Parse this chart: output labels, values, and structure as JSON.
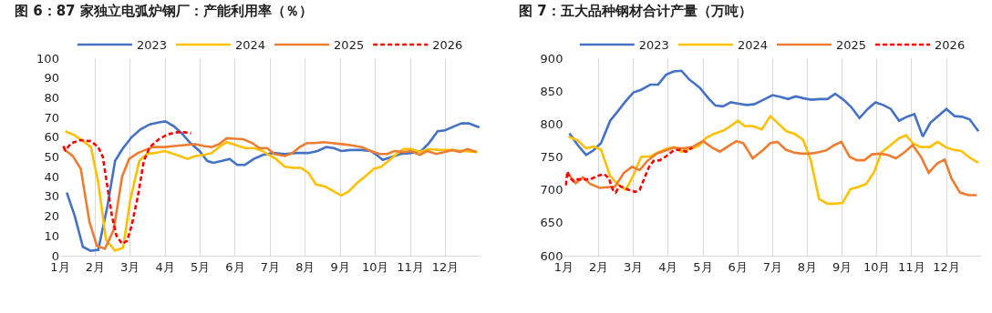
{
  "chart_data": [
    {
      "type": "line",
      "title": "图 6：87 家独立电弧炉钢厂：产能利用率（％）",
      "legend": "top",
      "grid": "x",
      "marker": "none",
      "xlim": [
        1,
        13
      ],
      "xticks": [
        {
          "value": 1,
          "label": "1月"
        },
        {
          "value": 2,
          "label": "2月"
        },
        {
          "value": 3,
          "label": "3月"
        },
        {
          "value": 4,
          "label": "4月"
        },
        {
          "value": 5,
          "label": "5月"
        },
        {
          "value": 6,
          "label": "6月"
        },
        {
          "value": 7,
          "label": "7月"
        },
        {
          "value": 8,
          "label": "8月"
        },
        {
          "value": 9,
          "label": "9月"
        },
        {
          "value": 10,
          "label": "10月"
        },
        {
          "value": 11,
          "label": "11月"
        },
        {
          "value": 12,
          "label": "12月"
        }
      ],
      "ylim": [
        0,
        100
      ],
      "yticks": [
        0,
        10,
        20,
        30,
        40,
        50,
        60,
        70,
        80,
        90,
        100
      ],
      "series": [
        {
          "name": "2023",
          "color": "#4472c4",
          "line_style": "solid",
          "x": [
            1.19,
            1.42,
            1.65,
            1.87,
            2.09,
            2.35,
            2.57,
            2.78,
            3.04,
            3.3,
            3.56,
            3.82,
            4.01,
            4.25,
            4.47,
            4.72,
            4.98,
            5.2,
            5.37,
            5.63,
            5.84,
            6.06,
            6.28,
            6.53,
            6.79,
            7.08,
            7.42,
            7.75,
            8.09,
            8.35,
            8.6,
            8.81,
            9.03,
            9.28,
            9.62,
            9.87,
            10.04,
            10.21,
            10.47,
            10.72,
            11.02,
            11.31,
            11.53,
            11.78,
            11.99,
            12.25,
            12.46,
            12.67,
            12.97
          ],
          "values": [
            32,
            20,
            4.5,
            2.5,
            3,
            25,
            48,
            54,
            60,
            64,
            66.5,
            67.5,
            68,
            65.5,
            62,
            57,
            53,
            48,
            47,
            48,
            49,
            46,
            46,
            49,
            51,
            52,
            51.5,
            52,
            52,
            53,
            55,
            54.5,
            53,
            53.5,
            53.5,
            53,
            51,
            48.5,
            50,
            51.5,
            52,
            53,
            57,
            63,
            63.5,
            65.5,
            67,
            67,
            65
          ]
        },
        {
          "name": "2024",
          "color": "#ffc000",
          "line_style": "solid",
          "x": [
            1.15,
            1.41,
            1.66,
            1.88,
            2.09,
            2.31,
            2.57,
            2.8,
            3.0,
            3.26,
            3.47,
            3.69,
            3.99,
            4.25,
            4.64,
            4.85,
            5.11,
            5.33,
            5.54,
            5.76,
            6.02,
            6.28,
            6.53,
            6.79,
            6.91,
            7.16,
            7.42,
            7.67,
            7.88,
            8.09,
            8.31,
            8.56,
            8.77,
            9.03,
            9.24,
            9.49,
            9.7,
            9.96,
            10.17,
            10.38,
            10.64,
            10.81,
            11.02,
            11.27,
            11.53,
            11.82,
            12.16,
            12.5,
            12.92
          ],
          "values": [
            63,
            61,
            58,
            55,
            37,
            8,
            2.5,
            4,
            28,
            48,
            51.5,
            52,
            53,
            51.5,
            49,
            50.5,
            51,
            52,
            55,
            57.5,
            56,
            54.5,
            54.5,
            53,
            51.5,
            49,
            45,
            44.5,
            44.5,
            42,
            36,
            35,
            33,
            30.5,
            32.5,
            37,
            40,
            44,
            45,
            48,
            52,
            54,
            54,
            52.5,
            54,
            53.5,
            53.5,
            53,
            52.5
          ]
        },
        {
          "name": "2025",
          "color": "#ed7d31",
          "line_style": "solid",
          "x": [
            1.1,
            1.36,
            1.59,
            1.84,
            2.05,
            2.28,
            2.53,
            2.77,
            2.97,
            3.22,
            3.43,
            3.65,
            3.99,
            4.25,
            4.55,
            4.85,
            5.11,
            5.33,
            5.54,
            5.76,
            6.23,
            6.49,
            6.69,
            6.91,
            7.12,
            7.42,
            7.63,
            7.84,
            8.05,
            8.26,
            8.52,
            8.77,
            9.03,
            9.28,
            9.62,
            9.87,
            10.13,
            10.34,
            10.55,
            10.81,
            11.02,
            11.27,
            11.48,
            11.74,
            11.99,
            12.2,
            12.42,
            12.63,
            12.88
          ],
          "values": [
            54,
            50.5,
            44,
            17,
            5,
            3.5,
            13,
            40,
            49,
            52,
            53.5,
            55,
            55,
            55.5,
            56,
            56.5,
            55.5,
            55,
            56.5,
            59.5,
            59,
            57,
            54.5,
            54.5,
            51.5,
            50.5,
            52,
            55,
            57,
            57,
            57.5,
            57,
            56.5,
            56,
            55,
            53,
            51.5,
            51.5,
            53,
            52.5,
            53,
            51,
            53,
            51.5,
            52.5,
            53.5,
            52.5,
            54,
            52.5
          ]
        },
        {
          "name": "2026",
          "color": "#ff0000",
          "line_style": "dashed",
          "x": [
            1.09,
            1.15,
            1.32,
            1.58,
            1.88,
            2.09,
            2.22,
            2.35,
            2.48,
            2.61,
            2.77,
            2.91,
            3.04,
            3.22,
            3.39,
            3.56,
            3.82,
            4.08,
            4.34,
            4.55,
            4.74
          ],
          "values": [
            55.5,
            53.5,
            57,
            58.5,
            58,
            55,
            50,
            35,
            20,
            10,
            6,
            7.5,
            15,
            30,
            48,
            55,
            59,
            61.5,
            62.5,
            62.5,
            62
          ]
        }
      ]
    },
    {
      "type": "line",
      "title": "图 7：五大品种钢材合计产量（万吨）",
      "legend": "top",
      "grid": "x",
      "marker": "none",
      "xlim": [
        1,
        13
      ],
      "xticks": [
        {
          "value": 1,
          "label": "1月"
        },
        {
          "value": 2,
          "label": "2月"
        },
        {
          "value": 3,
          "label": "3月"
        },
        {
          "value": 4,
          "label": "4月"
        },
        {
          "value": 5,
          "label": "5月"
        },
        {
          "value": 6,
          "label": "6月"
        },
        {
          "value": 7,
          "label": "7月"
        },
        {
          "value": 8,
          "label": "8月"
        },
        {
          "value": 9,
          "label": "9月"
        },
        {
          "value": 10,
          "label": "10月"
        },
        {
          "value": 11,
          "label": "11月"
        },
        {
          "value": 12,
          "label": "12月"
        }
      ],
      "ylim": [
        600,
        900
      ],
      "yticks": [
        600,
        650,
        700,
        750,
        800,
        850,
        900
      ],
      "series": [
        {
          "name": "2023",
          "color": "#4472c4",
          "line_style": "solid",
          "x": [
            1.16,
            1.4,
            1.64,
            1.85,
            2.07,
            2.33,
            2.56,
            2.78,
            3.0,
            3.22,
            3.49,
            3.71,
            3.94,
            4.16,
            4.38,
            4.6,
            4.91,
            5.14,
            5.36,
            5.58,
            5.8,
            6.03,
            6.25,
            6.47,
            6.74,
            7.0,
            7.25,
            7.45,
            7.67,
            7.9,
            8.12,
            8.34,
            8.58,
            8.8,
            9.04,
            9.26,
            9.5,
            9.74,
            9.96,
            10.18,
            10.4,
            10.64,
            10.86,
            11.08,
            11.32,
            11.54,
            11.78,
            12.0,
            12.24,
            12.46,
            12.67,
            12.92
          ],
          "values": [
            786,
            768,
            753,
            760,
            771,
            805,
            820,
            835,
            848,
            852,
            860,
            860,
            875,
            880,
            881,
            868,
            855,
            840,
            828,
            827,
            833,
            831,
            829,
            830,
            837,
            844,
            841,
            838,
            842,
            839,
            837,
            838,
            838,
            846,
            837,
            826,
            809,
            823,
            833,
            829,
            823,
            805,
            811,
            815,
            781,
            802,
            813,
            823,
            812,
            811,
            807,
            789
          ]
        },
        {
          "name": "2024",
          "color": "#ffc000",
          "line_style": "solid",
          "x": [
            1.13,
            1.4,
            1.64,
            1.85,
            2.07,
            2.33,
            2.56,
            2.78,
            3.0,
            3.22,
            3.49,
            3.71,
            3.94,
            4.16,
            4.38,
            4.6,
            4.87,
            5.09,
            5.31,
            5.58,
            5.8,
            6.0,
            6.2,
            6.43,
            6.69,
            6.94,
            7.18,
            7.4,
            7.64,
            7.88,
            8.1,
            8.34,
            8.58,
            8.8,
            9.01,
            9.24,
            9.45,
            9.69,
            9.92,
            10.13,
            10.35,
            10.62,
            10.84,
            11.05,
            11.27,
            11.52,
            11.75,
            11.97,
            12.19,
            12.43,
            12.67,
            12.92
          ],
          "values": [
            781,
            775,
            763,
            766,
            761,
            721,
            708,
            700,
            722,
            750,
            751,
            757,
            762,
            765,
            758,
            762,
            766,
            779,
            785,
            790,
            797,
            805,
            797,
            797,
            792,
            812,
            800,
            789,
            785,
            776,
            745,
            686,
            679,
            679,
            680,
            701,
            704,
            709,
            727,
            757,
            766,
            778,
            783,
            770,
            765,
            765,
            773,
            765,
            761,
            759,
            749,
            741
          ]
        },
        {
          "name": "2025",
          "color": "#ed7d31",
          "line_style": "solid",
          "x": [
            1.13,
            1.34,
            1.55,
            1.76,
            2.02,
            2.25,
            2.47,
            2.73,
            2.96,
            3.18,
            3.4,
            3.67,
            3.94,
            4.16,
            4.43,
            4.69,
            5.0,
            5.27,
            5.49,
            5.72,
            5.96,
            6.16,
            6.43,
            6.74,
            6.94,
            7.14,
            7.38,
            7.6,
            7.84,
            8.08,
            8.3,
            8.54,
            8.78,
            8.98,
            9.22,
            9.43,
            9.64,
            9.86,
            10.09,
            10.31,
            10.55,
            10.79,
            11.03,
            11.27,
            11.49,
            11.73,
            11.95,
            12.15,
            12.39,
            12.63,
            12.87
          ],
          "values": [
            724,
            710,
            719,
            709,
            703,
            704,
            705,
            726,
            735,
            730,
            744,
            755,
            760,
            764,
            763,
            765,
            774,
            764,
            758,
            766,
            774,
            771,
            748,
            761,
            771,
            773,
            761,
            757,
            755,
            755,
            757,
            760,
            768,
            773,
            750,
            745,
            745,
            754,
            755,
            753,
            748,
            757,
            768,
            750,
            726,
            740,
            746,
            717,
            696,
            692,
            692
          ]
        },
        {
          "name": "2026",
          "color": "#ff0000",
          "line_style": "dashed",
          "x": [
            1.06,
            1.1,
            1.18,
            1.28,
            1.4,
            1.58,
            1.76,
            1.96,
            2.16,
            2.29,
            2.41,
            2.49,
            2.6,
            2.73,
            2.87,
            3.05,
            3.18,
            3.31,
            3.45,
            3.58,
            3.76,
            3.94,
            4.16,
            4.34,
            4.51,
            4.69
          ],
          "values": [
            707,
            728,
            718,
            713,
            716,
            716,
            716,
            721,
            724,
            718,
            700,
            696,
            706,
            703,
            700,
            697,
            700,
            717,
            735,
            744,
            745,
            751,
            760,
            761,
            758,
            764
          ]
        }
      ]
    }
  ]
}
